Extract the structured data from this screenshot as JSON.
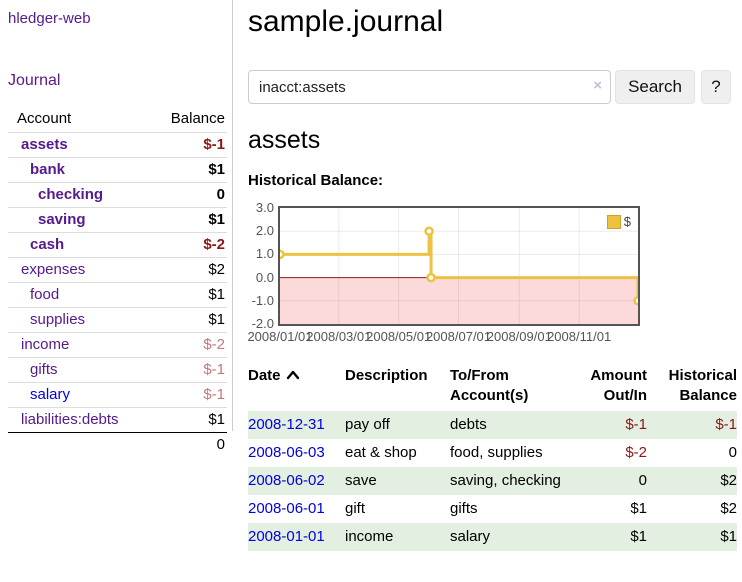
{
  "brand": "hledger-web",
  "nav": {
    "journal": "Journal"
  },
  "sidebar": {
    "col_account": "Account",
    "col_balance": "Balance",
    "accounts": [
      {
        "name": "assets",
        "indent": 0,
        "balance": "$-1",
        "emph": true,
        "neg": "strong",
        "unvisited": false
      },
      {
        "name": "bank",
        "indent": 1,
        "balance": "$1",
        "emph": true,
        "neg": "none",
        "unvisited": false
      },
      {
        "name": "checking",
        "indent": 2,
        "balance": "0",
        "emph": true,
        "neg": "none",
        "unvisited": false
      },
      {
        "name": "saving",
        "indent": 2,
        "balance": "$1",
        "emph": true,
        "neg": "none",
        "unvisited": false
      },
      {
        "name": "cash",
        "indent": 1,
        "balance": "$-2",
        "emph": true,
        "neg": "strong",
        "unvisited": false
      },
      {
        "name": "expenses",
        "indent": 0,
        "balance": "$2",
        "emph": false,
        "neg": "none",
        "unvisited": false
      },
      {
        "name": "food",
        "indent": 1,
        "balance": "$1",
        "emph": false,
        "neg": "none",
        "unvisited": false
      },
      {
        "name": "supplies",
        "indent": 1,
        "balance": "$1",
        "emph": false,
        "neg": "none",
        "unvisited": false
      },
      {
        "name": "income",
        "indent": 0,
        "balance": "$-2",
        "emph": false,
        "neg": "soft",
        "unvisited": false
      },
      {
        "name": "gifts",
        "indent": 1,
        "balance": "$-1",
        "emph": false,
        "neg": "soft",
        "unvisited": false
      },
      {
        "name": "salary",
        "indent": 1,
        "balance": "$-1",
        "emph": false,
        "neg": "soft",
        "unvisited": true
      },
      {
        "name": "liabilities:debts",
        "indent": 0,
        "balance": "$1",
        "emph": false,
        "neg": "none",
        "unvisited": false
      }
    ],
    "total": "0"
  },
  "page": {
    "title": "sample.journal",
    "account_title": "assets",
    "chart_heading": "Historical Balance:"
  },
  "search": {
    "value": "inacct:assets",
    "clear": "×",
    "button": "Search",
    "help": "?"
  },
  "chart_data": {
    "type": "line",
    "step": true,
    "title": "Historical Balance",
    "series": [
      {
        "name": "$",
        "color": "#edc240",
        "points": [
          [
            "2008-01-01",
            1
          ],
          [
            "2008-06-01",
            2
          ],
          [
            "2008-06-03",
            0
          ],
          [
            "2008-12-31",
            -1
          ]
        ]
      }
    ],
    "x_range": [
      "2008-01-01",
      "2008-12-31"
    ],
    "ylim": [
      -2,
      3
    ],
    "yticks": [
      3,
      2,
      1,
      0,
      -1,
      -2
    ],
    "ytick_labels": [
      "3.0",
      "2.0",
      "1.0",
      "0.0",
      "-1.0",
      "-2.0"
    ],
    "xticks": [
      "2008-01-01",
      "2008-03-01",
      "2008-05-01",
      "2008-07-01",
      "2008-09-01",
      "2008-11-01"
    ],
    "xtick_labels": [
      "2008/01/01",
      "2008/03/01",
      "2008/05/01",
      "2008/07/01",
      "2008/09/01",
      "2008/11/01"
    ],
    "grid": true,
    "legend_position": "top-right",
    "negative_fill": "#fcdada",
    "zero_line_color": "#8b1a1a"
  },
  "register": {
    "headers": {
      "date": "Date",
      "description": "Description",
      "accounts": "To/From Account(s)",
      "amount": "Amount Out/In",
      "balance": "Historical Balance"
    },
    "rows": [
      {
        "date": "2008-12-31",
        "description": "pay off",
        "accounts": "debts",
        "amount": "$-1",
        "balance": "$-1"
      },
      {
        "date": "2008-06-03",
        "description": "eat & shop",
        "accounts": "food, supplies",
        "amount": "$-2",
        "balance": "0"
      },
      {
        "date": "2008-06-02",
        "description": "save",
        "accounts": "saving, checking",
        "amount": "0",
        "balance": "$2"
      },
      {
        "date": "2008-06-01",
        "description": "gift",
        "accounts": "gifts",
        "amount": "$1",
        "balance": "$2"
      },
      {
        "date": "2008-01-01",
        "description": "income",
        "accounts": "salary",
        "amount": "$1",
        "balance": "$1"
      }
    ]
  }
}
